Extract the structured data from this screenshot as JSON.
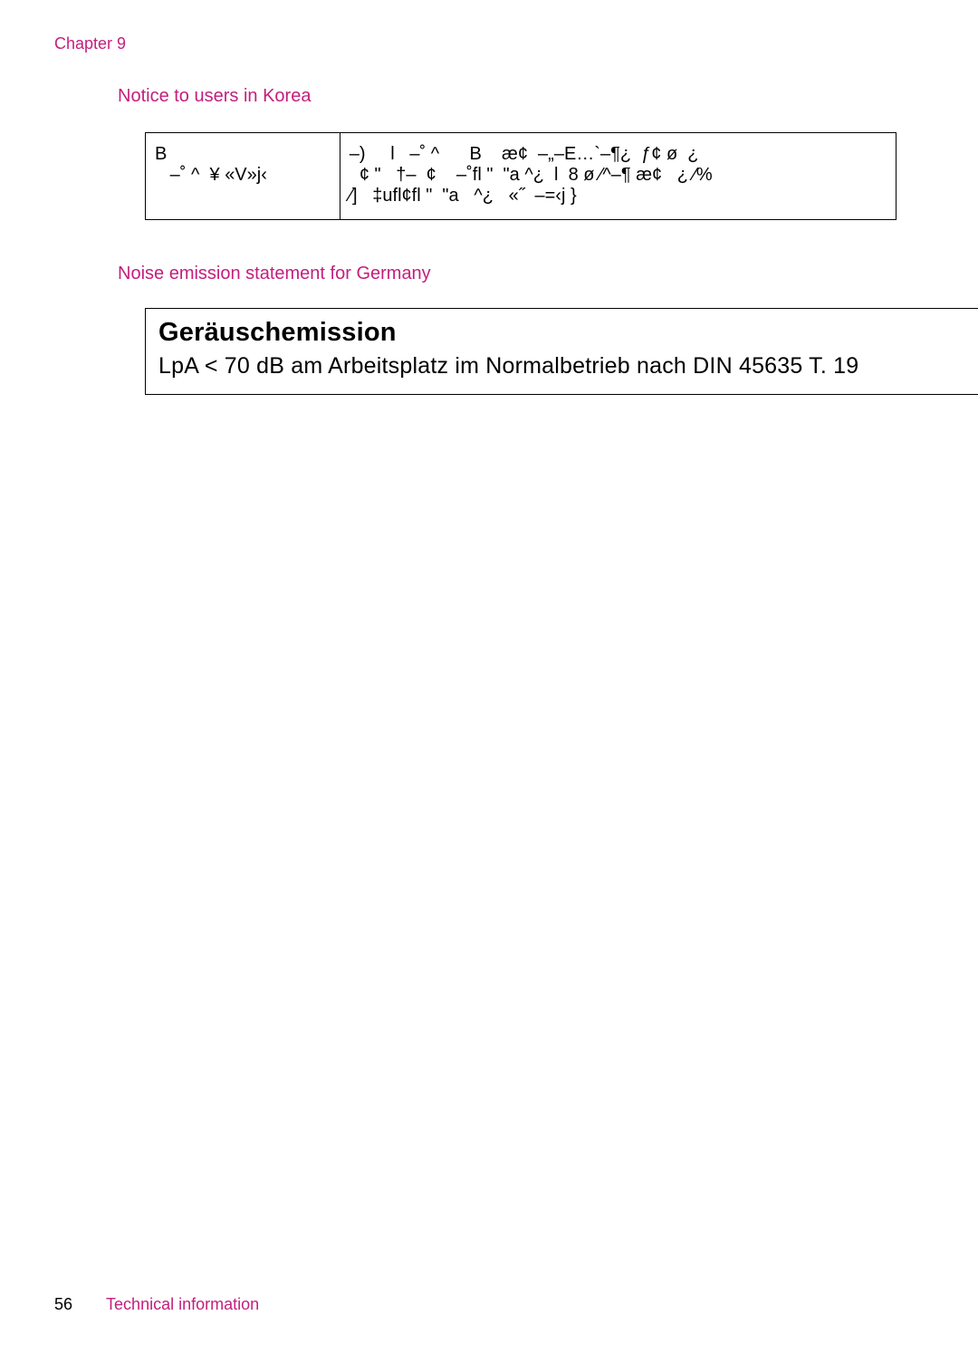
{
  "header": {
    "chapter_label": "Chapter 9"
  },
  "korea": {
    "heading": "Notice to users in Korea",
    "table": {
      "left_line1": "B",
      "left_line2": "   –˚ ^  ¥ «V»j‹",
      "right_line1": "–)     l   –˚ ^      B    æ¢  –„–E…`–¶¿  ƒ¢ ø  ¿",
      "right_line2": "  ¢ \"   †–  ¢    –˚fl \"  \"a ^¿  l  8 ø ⁄^–¶ æ¢   ¿ ⁄%",
      "right_line3": "⁄]   ‡ufl¢fl \"  \"a   ^¿   «˝  –=‹j }"
    }
  },
  "germany": {
    "heading": "Noise emission statement for Germany",
    "box_title": "Geräuschemission",
    "box_body": "LpA < 70 dB am Arbeitsplatz im Normalbetrieb nach DIN 45635 T. 19"
  },
  "footer": {
    "page_number": "56",
    "section_title": "Technical information"
  },
  "colors": {
    "accent": "#c41e7c",
    "text": "#000000",
    "border": "#000000",
    "background": "#ffffff"
  }
}
